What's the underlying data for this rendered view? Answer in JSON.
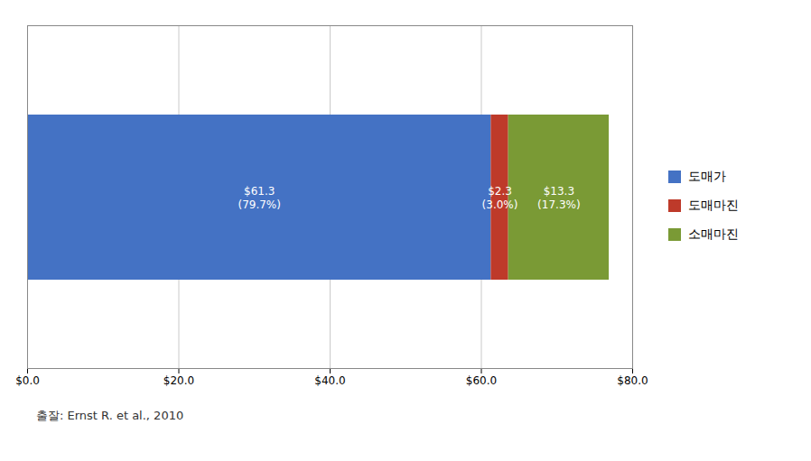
{
  "chart_data": {
    "type": "bar",
    "orientation": "horizontal",
    "stacked": true,
    "caption": "출잘: Ernst R. et al., 2010",
    "categories": [
      null
    ],
    "series": [
      {
        "name": "도매가",
        "color": "#4472C4",
        "values": [
          61.3
        ],
        "value_labels": [
          "$61.3\n(79.7%)"
        ]
      },
      {
        "name": "도매마진",
        "color": "#BE3A2A",
        "values": [
          2.3
        ],
        "value_labels": [
          "$2.3\n(3.0%)"
        ]
      },
      {
        "name": "소매마진",
        "color": "#7A9A35",
        "values": [
          13.3
        ],
        "value_labels": [
          "$13.3\n(17.3%)"
        ]
      }
    ],
    "xlim": [
      0,
      80
    ],
    "xticks": [
      {
        "value": 0,
        "label": "$0.0"
      },
      {
        "value": 20,
        "label": "$20.0"
      },
      {
        "value": 40,
        "label": "$40.0"
      },
      {
        "value": 60,
        "label": "$60.0"
      },
      {
        "value": 80,
        "label": "$80.0"
      }
    ],
    "grid": true,
    "data_labels": true,
    "legend": "right"
  }
}
